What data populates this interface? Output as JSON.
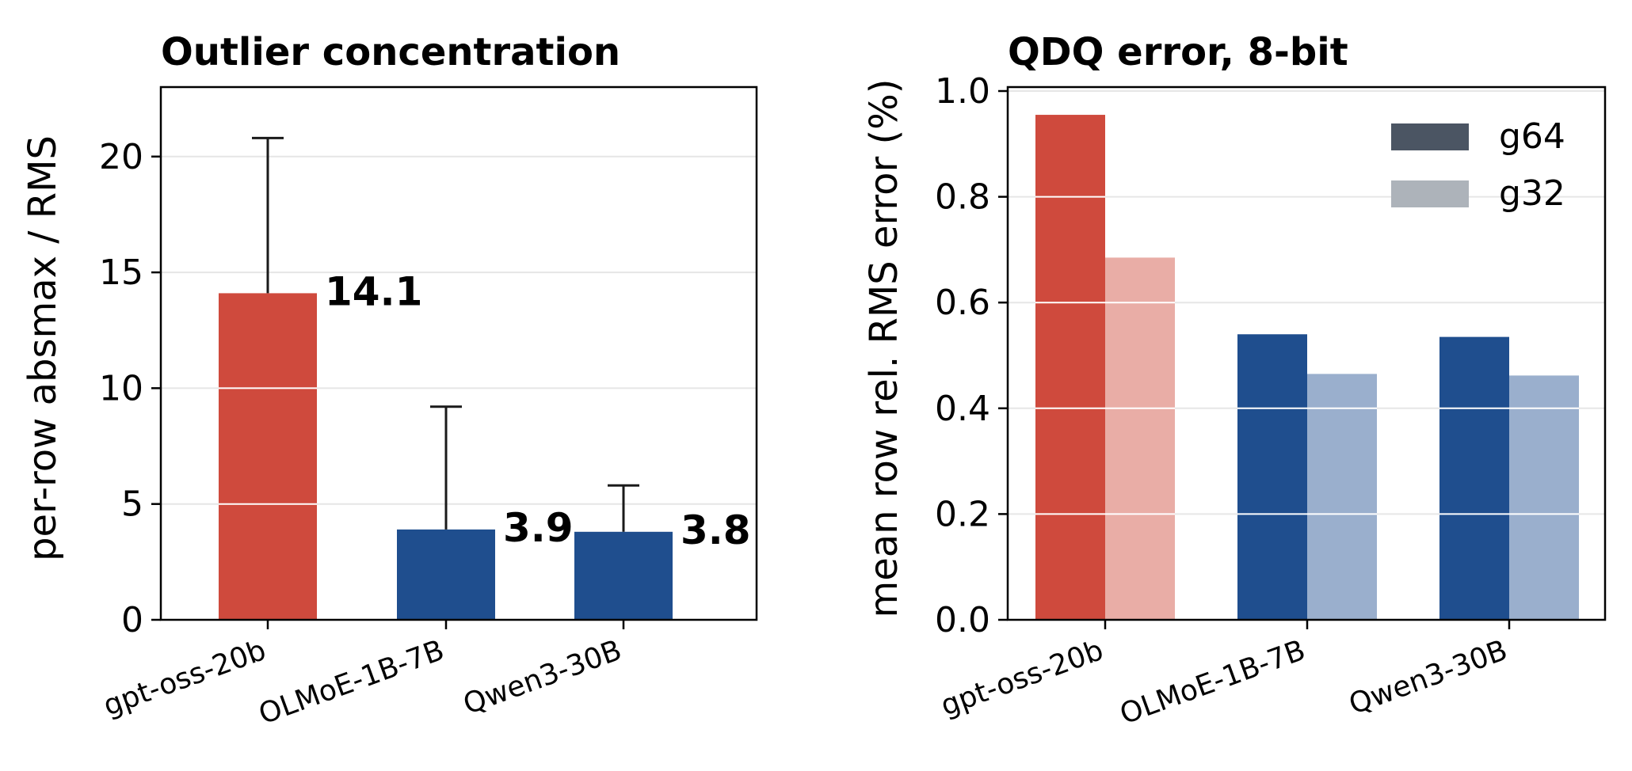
{
  "chart_data": [
    {
      "type": "bar",
      "title": "Outlier concentration",
      "ylabel": "per-row absmax / RMS",
      "xlabel": "",
      "categories": [
        "gpt-oss-20b",
        "OLMoE-1B-7B",
        "Qwen3-30B"
      ],
      "values": [
        14.1,
        3.9,
        3.8
      ],
      "error_upper": [
        20.8,
        9.2,
        5.8
      ],
      "data_labels": [
        "14.1",
        "3.9",
        "3.8"
      ],
      "colors": [
        "#cf4a3d",
        "#1f4e8e",
        "#1f4e8e"
      ],
      "ylim": [
        0,
        23
      ],
      "yticks": [
        0,
        5,
        10,
        15,
        20
      ],
      "ytick_labels": [
        "0",
        "5",
        "10",
        "15",
        "20"
      ],
      "grid": true
    },
    {
      "type": "bar",
      "title": "QDQ error, 8-bit",
      "ylabel": "mean row rel. RMS error (%)",
      "xlabel": "",
      "categories": [
        "gpt-oss-20b",
        "OLMoE-1B-7B",
        "Qwen3-30B"
      ],
      "series": [
        {
          "name": "g64",
          "values": [
            0.955,
            0.54,
            0.535
          ],
          "colors": [
            "#cf4a3d",
            "#1f4e8e",
            "#1f4e8e"
          ],
          "legend_color": "#4b5563"
        },
        {
          "name": "g32",
          "values": [
            0.685,
            0.465,
            0.462
          ],
          "colors": [
            "#e9ada6",
            "#9aafcd",
            "#9aafcd"
          ],
          "legend_color": "#adb3ba"
        }
      ],
      "ylim": [
        0,
        1.0
      ],
      "yticks": [
        0.0,
        0.2,
        0.4,
        0.6,
        0.8,
        1.0
      ],
      "ytick_labels": [
        "0.0",
        "0.2",
        "0.4",
        "0.6",
        "0.8",
        "1.0"
      ],
      "legend_position": "top-right",
      "grid": true
    }
  ]
}
